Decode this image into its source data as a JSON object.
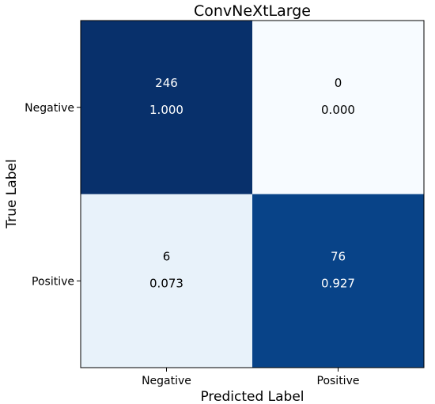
{
  "chart_data": {
    "type": "heatmap",
    "title": "ConvNeXtLarge",
    "xlabel": "Predicted Label",
    "ylabel": "True Label",
    "x_categories": [
      "Negative",
      "Positive"
    ],
    "y_categories": [
      "Negative",
      "Positive"
    ],
    "cells": [
      [
        {
          "count": "246",
          "rate": "1.000",
          "value": 1.0
        },
        {
          "count": "0",
          "rate": "0.000",
          "value": 0.0
        }
      ],
      [
        {
          "count": "6",
          "rate": "0.073",
          "value": 0.073
        },
        {
          "count": "76",
          "rate": "0.927",
          "value": 0.927
        }
      ]
    ],
    "colormap": "Blues",
    "color_low": "#f7fbff",
    "color_high": "#08306b",
    "text_dark": "#000000",
    "text_light": "#ffffff",
    "grid": false
  }
}
